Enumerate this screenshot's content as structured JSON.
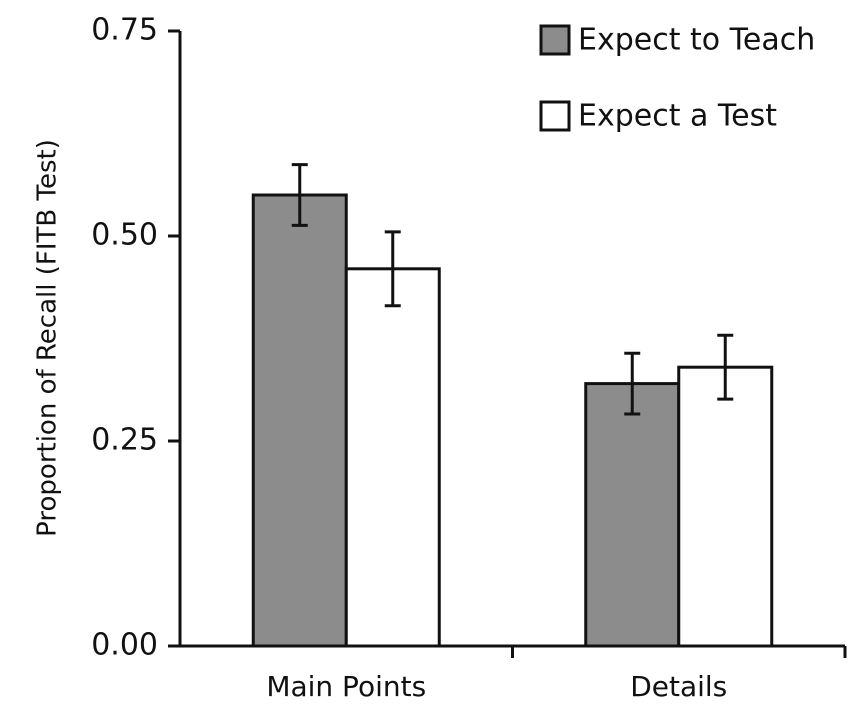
{
  "chart_data": {
    "type": "bar",
    "categories": [
      "Main Points",
      "Details"
    ],
    "series": [
      {
        "name": "Expect to Teach",
        "values": [
          0.55,
          0.32
        ],
        "errors": [
          0.037,
          0.037
        ],
        "color": "#8c8c8c"
      },
      {
        "name": "Expect a Test",
        "values": [
          0.46,
          0.34
        ],
        "errors": [
          0.045,
          0.039
        ],
        "color": "#ffffff"
      }
    ],
    "xlabel": "",
    "ylabel": "Proportion of Recall (FITB Test)",
    "ylim": [
      0,
      0.75
    ],
    "yticks": [
      {
        "value": 0,
        "label": "0.00"
      },
      {
        "value": 0.25,
        "label": "0.25"
      },
      {
        "value": 0.5,
        "label": "0.50"
      },
      {
        "value": 0.75,
        "label": "0.75"
      }
    ],
    "grid": false,
    "legend_position": "top-right"
  }
}
